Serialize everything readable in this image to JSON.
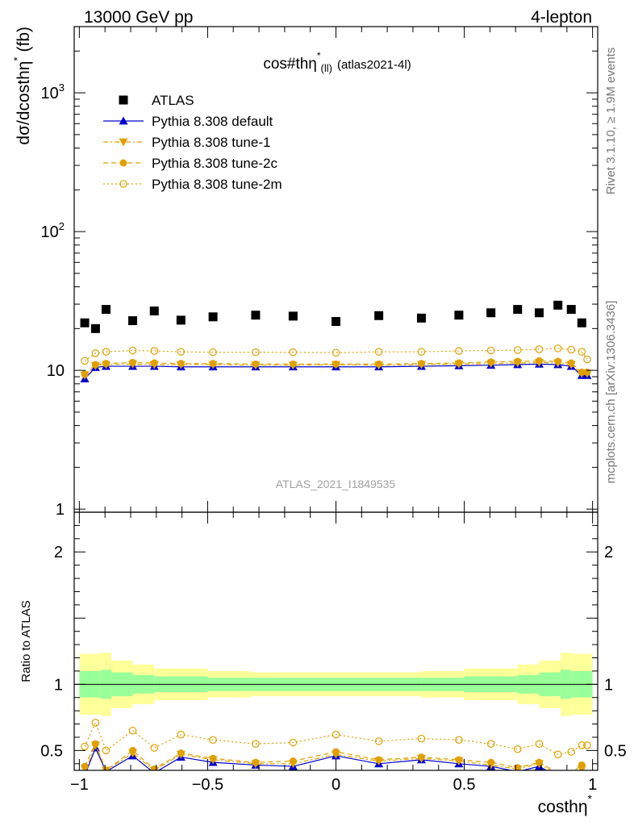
{
  "header": {
    "left": "13000 GeV pp",
    "right": "4-lepton"
  },
  "side_labels": {
    "rivet": "Rivet 3.1.10, ≥ 1.9M events",
    "mcplots": "mcplots.cern.ch [arXiv:1306.3436]"
  },
  "watermark": "ATLAS_2021_I1849535",
  "chart_data": [
    {
      "type": "scatter",
      "panel": "main",
      "title": "cos#thη* (ll) (atlas2021-4l)",
      "title_main": "cos#thη",
      "title_sup": "*",
      "title_sub": "(ll)",
      "title_tail": "(atlas2021-4l)",
      "ylabel": "dσ/dcosthη * (fb)",
      "ylabel_main": "dσ/dcosthη",
      "ylabel_sup": "*",
      "ylabel_tail": "(fb)",
      "yscale": "log",
      "xlim": [
        -1.02,
        1.02
      ],
      "ylim": [
        0.95,
        3000
      ],
      "yticks": [
        {
          "value": 1,
          "label": "1",
          "sup": ""
        },
        {
          "value": 10,
          "label": "10",
          "sup": ""
        },
        {
          "value": 100,
          "label": "10",
          "sup": "2"
        },
        {
          "value": 1000,
          "label": "10",
          "sup": "3"
        }
      ],
      "legend_position": "top-left",
      "x": [
        -0.979,
        -0.937,
        -0.896,
        -0.792,
        -0.708,
        -0.604,
        -0.479,
        -0.313,
        -0.167,
        0.0,
        0.167,
        0.333,
        0.479,
        0.604,
        0.708,
        0.792,
        0.865,
        0.917,
        0.958,
        0.979
      ],
      "series": [
        {
          "name": "ATLAS",
          "color": "#000000",
          "marker": "square",
          "line": "none",
          "values": [
            22.0,
            20.0,
            27.5,
            22.8,
            26.8,
            23.0,
            24.3,
            25.0,
            24.6,
            22.5,
            24.8,
            23.8,
            25.0,
            26.0,
            27.5,
            26.0,
            29.5,
            27.5,
            22.0,
            null
          ]
        },
        {
          "name": "Pythia 8.308 default",
          "color": "#0000cc",
          "marker": "triangle-up",
          "line": "solid",
          "values": [
            8.7,
            10.5,
            10.7,
            10.7,
            10.7,
            10.6,
            10.6,
            10.6,
            10.6,
            10.6,
            10.6,
            10.7,
            10.8,
            10.9,
            11.0,
            11.1,
            11.0,
            10.7,
            9.2,
            9.2
          ]
        },
        {
          "name": "Pythia 8.308 tune-1",
          "color": "#e0a000",
          "marker": "triangle-down",
          "line": "dash-dot",
          "values": [
            9.2,
            10.8,
            11.0,
            11.1,
            11.0,
            11.0,
            11.0,
            10.9,
            10.9,
            11.0,
            10.9,
            11.0,
            11.1,
            11.2,
            11.3,
            11.4,
            11.3,
            11.0,
            9.5,
            9.5
          ]
        },
        {
          "name": "Pythia 8.308 tune-2c",
          "color": "#e0a000",
          "marker": "circle",
          "line": "dashed",
          "values": [
            9.4,
            11.0,
            11.2,
            11.4,
            11.3,
            11.2,
            11.2,
            11.1,
            11.1,
            11.1,
            11.1,
            11.2,
            11.3,
            11.5,
            11.6,
            11.7,
            11.6,
            11.3,
            9.7,
            9.7
          ]
        },
        {
          "name": "Pythia 8.308 tune-2m",
          "color": "#e0a000",
          "marker": "circle-open",
          "line": "dotted",
          "values": [
            11.7,
            13.3,
            13.6,
            13.9,
            13.8,
            13.6,
            13.5,
            13.5,
            13.5,
            13.4,
            13.6,
            13.6,
            13.8,
            13.9,
            14.0,
            14.2,
            14.4,
            14.1,
            13.6,
            12.0
          ]
        }
      ]
    },
    {
      "type": "scatter",
      "panel": "ratio",
      "title": "",
      "xlabel": "costhη *",
      "xlabel_main": "costhη",
      "xlabel_sup": "*",
      "ylabel": "Ratio to ATLAS",
      "xlim": [
        -1.02,
        1.02
      ],
      "ylim": [
        0.35,
        2.3
      ],
      "xticks": [
        {
          "value": -1,
          "label": "−1"
        },
        {
          "value": -0.5,
          "label": "−0.5"
        },
        {
          "value": 0,
          "label": "0"
        },
        {
          "value": 0.5,
          "label": "0.5"
        },
        {
          "value": 1,
          "label": "1"
        }
      ],
      "yticks": [
        {
          "value": 0.5,
          "label": "0.5"
        },
        {
          "value": 1,
          "label": "1"
        },
        {
          "value": 2,
          "label": "2"
        }
      ],
      "bands": {
        "edges": [
          -1.0,
          -0.917,
          -0.875,
          -0.792,
          -0.708,
          -0.5,
          -0.333,
          0.0,
          0.333,
          0.5,
          0.708,
          0.792,
          0.875,
          0.917,
          1.0
        ],
        "outer_color": "#ffff99",
        "inner_color": "#99ff99",
        "outer_halfwidth": [
          0.23,
          0.24,
          0.18,
          0.15,
          0.12,
          0.1,
          0.09,
          0.09,
          0.1,
          0.12,
          0.15,
          0.18,
          0.24,
          0.23
        ],
        "inner_halfwidth": [
          0.1,
          0.11,
          0.09,
          0.07,
          0.06,
          0.05,
          0.05,
          0.05,
          0.05,
          0.06,
          0.07,
          0.09,
          0.11,
          0.1
        ]
      },
      "x": [
        -0.979,
        -0.937,
        -0.896,
        -0.792,
        -0.708,
        -0.604,
        -0.479,
        -0.313,
        -0.167,
        0.0,
        0.167,
        0.333,
        0.479,
        0.604,
        0.708,
        0.792,
        0.865,
        0.917,
        0.958,
        0.979
      ],
      "series": [
        {
          "name": "Pythia 8.308 default",
          "color": "#0000cc",
          "marker": "triangle-up",
          "line": "solid",
          "values": [
            0.31,
            0.52,
            0.34,
            0.46,
            0.33,
            0.45,
            0.41,
            0.39,
            0.38,
            0.46,
            0.4,
            0.43,
            0.4,
            0.38,
            0.34,
            0.38,
            0.3,
            0.3,
            0.34,
            0.3
          ]
        },
        {
          "name": "Pythia 8.308 tune-1",
          "color": "#e0a000",
          "marker": "triangle-down",
          "line": "dash-dot",
          "values": [
            0.33,
            0.54,
            0.35,
            0.48,
            0.35,
            0.47,
            0.43,
            0.4,
            0.4,
            0.47,
            0.42,
            0.44,
            0.42,
            0.39,
            0.36,
            0.4,
            0.32,
            0.32,
            0.36,
            0.32
          ]
        },
        {
          "name": "Pythia 8.308 tune-2c",
          "color": "#e0a000",
          "marker": "circle",
          "line": "dashed",
          "values": [
            0.38,
            0.55,
            0.35,
            0.5,
            0.36,
            0.48,
            0.44,
            0.41,
            0.42,
            0.49,
            0.43,
            0.45,
            0.43,
            0.41,
            0.37,
            0.41,
            0.33,
            0.33,
            0.39,
            0.33
          ]
        },
        {
          "name": "Pythia 8.308 tune-2m",
          "color": "#e0a000",
          "marker": "circle-open",
          "line": "dotted",
          "values": [
            0.53,
            0.71,
            0.5,
            0.65,
            0.52,
            0.62,
            0.58,
            0.55,
            0.56,
            0.62,
            0.57,
            0.59,
            0.58,
            0.55,
            0.51,
            0.55,
            0.47,
            0.49,
            0.54,
            0.54
          ]
        }
      ]
    }
  ]
}
